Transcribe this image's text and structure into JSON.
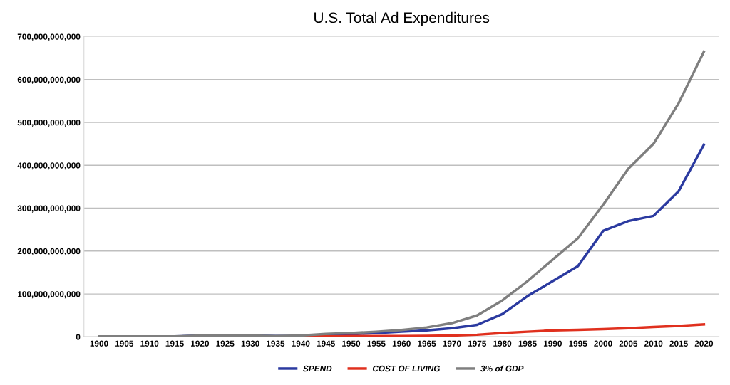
{
  "chart_data": {
    "type": "line",
    "title": "U.S. Total Ad Expenditures",
    "categories": [
      "1900",
      "1905",
      "1910",
      "1915",
      "1920",
      "1925",
      "1930",
      "1935",
      "1940",
      "1945",
      "1950",
      "1955",
      "1960",
      "1965",
      "1970",
      "1975",
      "1980",
      "1985",
      "1990",
      "1995",
      "2000",
      "2005",
      "2010",
      "2015",
      "2020"
    ],
    "series": [
      {
        "name": "SPEND",
        "color": "#2b3aa0",
        "values": [
          null,
          null,
          1000000000,
          1000000000,
          3000000000,
          3000000000,
          3000000000,
          2000000000,
          2000000000,
          3000000000,
          6000000000,
          9000000000,
          12000000000,
          15000000000,
          20000000000,
          28000000000,
          53000000000,
          95000000000,
          130000000000,
          165000000000,
          247000000000,
          270000000000,
          282000000000,
          340000000000,
          448000000000
        ]
      },
      {
        "name": "COST OF LIVING",
        "color": "#e0301e",
        "values": [
          null,
          null,
          null,
          null,
          null,
          null,
          null,
          0,
          1000000000,
          1000000000,
          2000000000,
          2000000000,
          2000000000,
          2500000000,
          3000000000,
          5000000000,
          9000000000,
          12000000000,
          15000000000,
          16500000000,
          18000000000,
          20000000000,
          23000000000,
          25500000000,
          29000000000
        ]
      },
      {
        "name": "3% of GDP",
        "color": "#7f7f7f",
        "values": [
          1000000000,
          1000000000,
          1000000000,
          1000000000,
          3000000000,
          3000000000,
          3000000000,
          2000000000,
          3000000000,
          7000000000,
          9000000000,
          12000000000,
          16000000000,
          22000000000,
          32000000000,
          50000000000,
          85000000000,
          130000000000,
          180000000000,
          230000000000,
          308000000000,
          392000000000,
          450000000000,
          545000000000,
          665000000000
        ]
      }
    ],
    "ylim": [
      0,
      700000000000
    ],
    "yticks": [
      {
        "value": 0,
        "label": "0"
      },
      {
        "value": 100000000000,
        "label": "100,000,000,000"
      },
      {
        "value": 200000000000,
        "label": "200,000,000,000"
      },
      {
        "value": 300000000000,
        "label": "300,000,000,000"
      },
      {
        "value": 400000000000,
        "label": "400,000,000,000"
      },
      {
        "value": 500000000000,
        "label": "500,000,000,000"
      },
      {
        "value": 600000000000,
        "label": "600,000,000,000"
      },
      {
        "value": 700000000000,
        "label": "700,000,000,000"
      }
    ],
    "grid": "y",
    "legend": "bottom",
    "marker": "none",
    "line_style": "solid"
  }
}
